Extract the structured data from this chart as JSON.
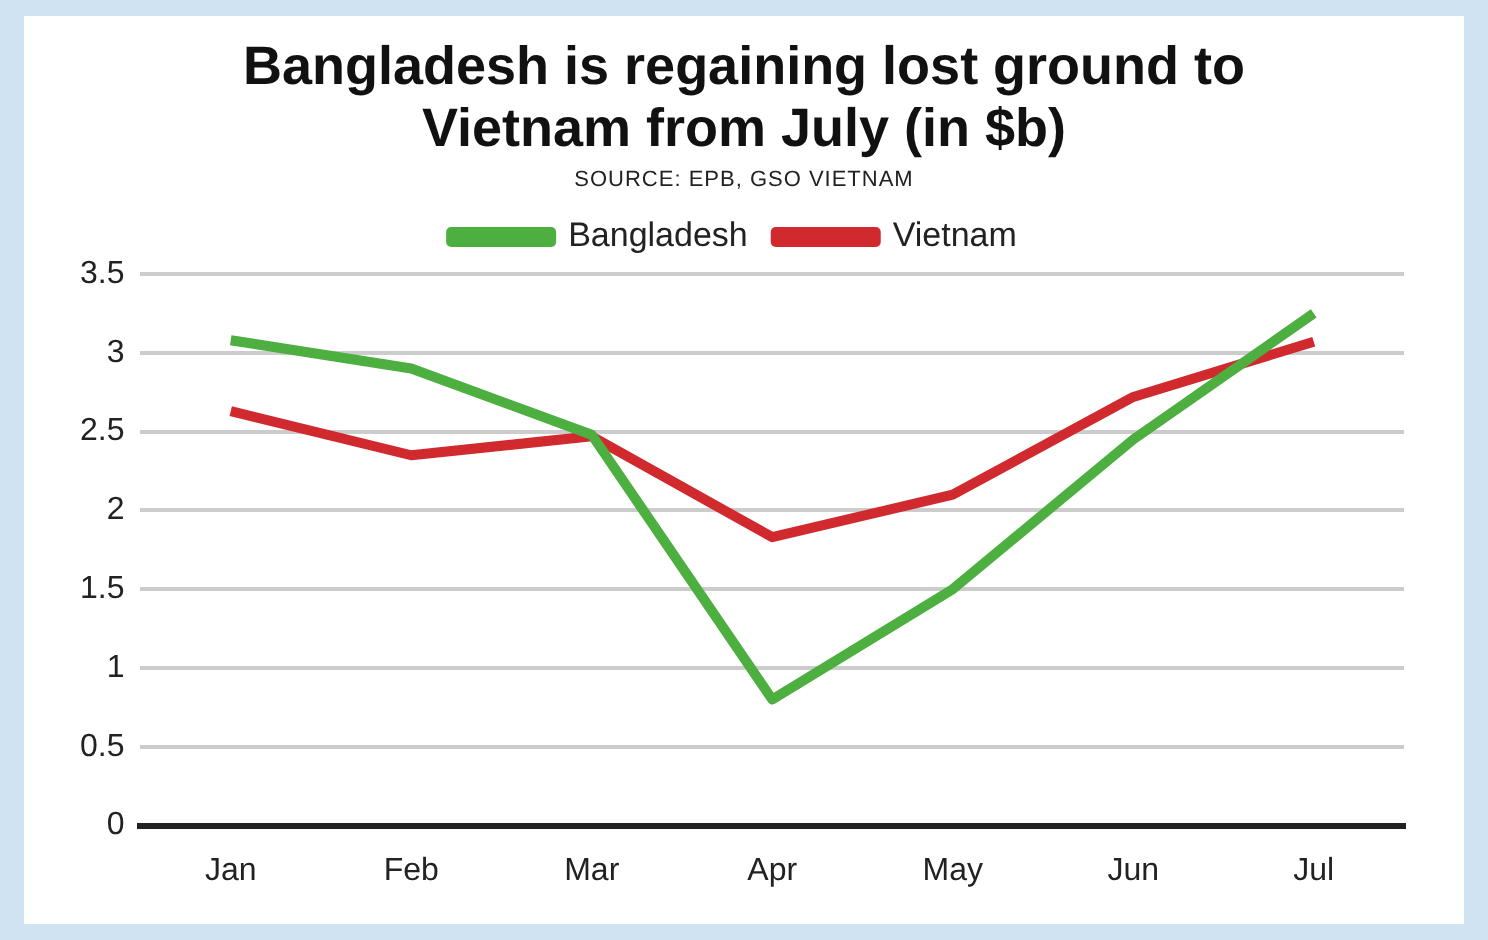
{
  "chart_data": {
    "type": "line",
    "title": "Bangladesh is regaining lost ground to Vietnam from July (in $b)",
    "annotations": [
      "SOURCE: EPB, GSO VIETNAM"
    ],
    "categories": [
      "Jan",
      "Feb",
      "Mar",
      "Apr",
      "May",
      "Jun",
      "Jul"
    ],
    "series": [
      {
        "name": "Bangladesh",
        "color": "#4caf3f",
        "values": [
          3.08,
          2.9,
          2.48,
          0.8,
          1.5,
          2.45,
          3.25
        ]
      },
      {
        "name": "Vietnam",
        "color": "#d02a2e",
        "values": [
          2.63,
          2.35,
          2.47,
          1.83,
          2.1,
          2.72,
          3.07
        ]
      }
    ],
    "ylim": [
      0,
      3.5
    ],
    "yticks": [
      0,
      0.5,
      1,
      1.5,
      2,
      2.5,
      3,
      3.5
    ],
    "grid": "y",
    "legend": "top",
    "marker": "none",
    "line_style": "solid"
  }
}
